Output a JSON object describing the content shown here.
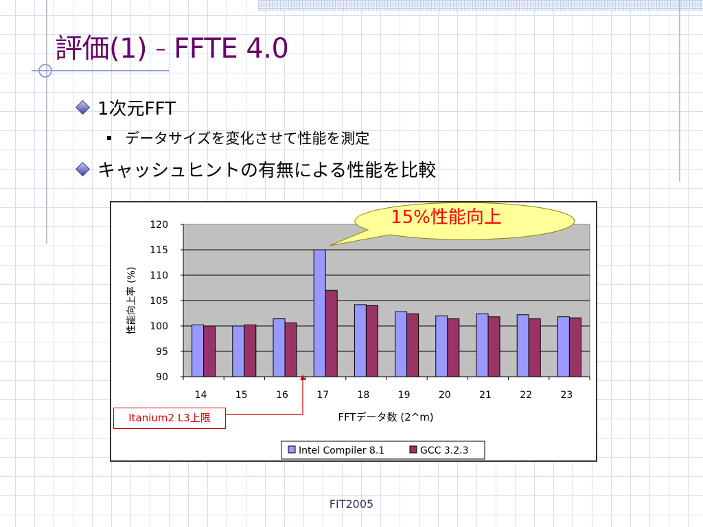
{
  "slide": {
    "title_main": "評価(1)",
    "title_dash": "–",
    "title_sub": "FFTE 4.0",
    "bullets": {
      "b1": "1次元FFT",
      "b1_sub": "データサイズを変化させて性能を測定",
      "b2": "キャッシュヒントの有無による性能を比較"
    },
    "callout": "15%性能向上",
    "annotation": "Itanium2 L3上限",
    "footer": "FIT2005"
  },
  "chart_data": {
    "type": "bar",
    "categories": [
      "14",
      "15",
      "16",
      "17",
      "18",
      "19",
      "20",
      "21",
      "22",
      "23"
    ],
    "series": [
      {
        "name": "Intel Compiler 8.1",
        "color": "#9999ff",
        "values": [
          100.2,
          100.0,
          101.4,
          115.0,
          104.2,
          102.8,
          102.0,
          102.4,
          102.2,
          101.8
        ]
      },
      {
        "name": "GCC 3.2.3",
        "color": "#993366",
        "values": [
          100.0,
          100.2,
          100.6,
          107.0,
          104.0,
          102.4,
          101.4,
          101.8,
          101.4,
          101.6
        ]
      }
    ],
    "ylim": [
      90,
      120
    ],
    "yticks": [
      90,
      95,
      100,
      105,
      110,
      115,
      120
    ],
    "xlabel": "FFTデータ数 (2^m)",
    "ylabel": "性能向上率 (%)",
    "grid": true,
    "plot_background": "#c0c0c0",
    "legend_position": "bottom"
  }
}
